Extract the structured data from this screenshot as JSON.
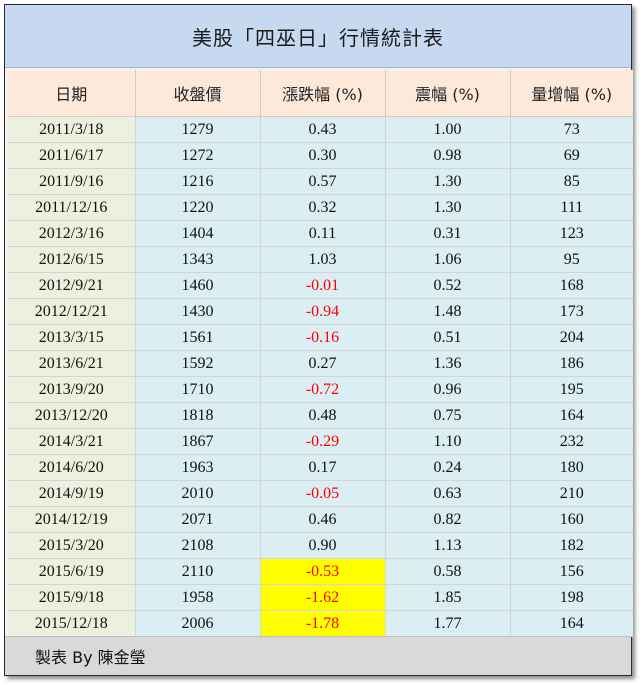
{
  "title": "美股「四巫日」行情統計表",
  "columns": [
    "日期",
    "收盤價",
    "漲跌幅 (%)",
    "震幅 (%)",
    "量增幅 (%)"
  ],
  "rows": [
    {
      "date": "2011/3/18",
      "close": "1279",
      "change": "0.43",
      "range": "1.00",
      "vol": "73",
      "neg": false,
      "hl": false
    },
    {
      "date": "2011/6/17",
      "close": "1272",
      "change": "0.30",
      "range": "0.98",
      "vol": "69",
      "neg": false,
      "hl": false
    },
    {
      "date": "2011/9/16",
      "close": "1216",
      "change": "0.57",
      "range": "1.30",
      "vol": "85",
      "neg": false,
      "hl": false
    },
    {
      "date": "2011/12/16",
      "close": "1220",
      "change": "0.32",
      "range": "1.30",
      "vol": "111",
      "neg": false,
      "hl": false
    },
    {
      "date": "2012/3/16",
      "close": "1404",
      "change": "0.11",
      "range": "0.31",
      "vol": "123",
      "neg": false,
      "hl": false
    },
    {
      "date": "2012/6/15",
      "close": "1343",
      "change": "1.03",
      "range": "1.06",
      "vol": "95",
      "neg": false,
      "hl": false
    },
    {
      "date": "2012/9/21",
      "close": "1460",
      "change": "-0.01",
      "range": "0.52",
      "vol": "168",
      "neg": true,
      "hl": false
    },
    {
      "date": "2012/12/21",
      "close": "1430",
      "change": "-0.94",
      "range": "1.48",
      "vol": "173",
      "neg": true,
      "hl": false
    },
    {
      "date": "2013/3/15",
      "close": "1561",
      "change": "-0.16",
      "range": "0.51",
      "vol": "204",
      "neg": true,
      "hl": false
    },
    {
      "date": "2013/6/21",
      "close": "1592",
      "change": "0.27",
      "range": "1.36",
      "vol": "186",
      "neg": false,
      "hl": false
    },
    {
      "date": "2013/9/20",
      "close": "1710",
      "change": "-0.72",
      "range": "0.96",
      "vol": "195",
      "neg": true,
      "hl": false
    },
    {
      "date": "2013/12/20",
      "close": "1818",
      "change": "0.48",
      "range": "0.75",
      "vol": "164",
      "neg": false,
      "hl": false
    },
    {
      "date": "2014/3/21",
      "close": "1867",
      "change": "-0.29",
      "range": "1.10",
      "vol": "232",
      "neg": true,
      "hl": false
    },
    {
      "date": "2014/6/20",
      "close": "1963",
      "change": "0.17",
      "range": "0.24",
      "vol": "180",
      "neg": false,
      "hl": false
    },
    {
      "date": "2014/9/19",
      "close": "2010",
      "change": "-0.05",
      "range": "0.63",
      "vol": "210",
      "neg": true,
      "hl": false
    },
    {
      "date": "2014/12/19",
      "close": "2071",
      "change": "0.46",
      "range": "0.82",
      "vol": "160",
      "neg": false,
      "hl": false
    },
    {
      "date": "2015/3/20",
      "close": "2108",
      "change": "0.90",
      "range": "1.13",
      "vol": "182",
      "neg": false,
      "hl": false
    },
    {
      "date": "2015/6/19",
      "close": "2110",
      "change": "-0.53",
      "range": "0.58",
      "vol": "156",
      "neg": true,
      "hl": true
    },
    {
      "date": "2015/9/18",
      "close": "1958",
      "change": "-1.62",
      "range": "1.85",
      "vol": "198",
      "neg": true,
      "hl": true
    },
    {
      "date": "2015/12/18",
      "close": "2006",
      "change": "-1.78",
      "range": "1.77",
      "vol": "164",
      "neg": true,
      "hl": true
    }
  ],
  "footer": "製表 By 陳金瑩",
  "colors": {
    "title_bg": "#c6d9f1",
    "header_bg": "#fde9d9",
    "date_col_bg": "#ebf1de",
    "data_col_bg": "#dbeef3",
    "negative_text": "#ff0000",
    "highlight_bg": "#ffff00",
    "footer_bg": "#d9d9d9"
  }
}
